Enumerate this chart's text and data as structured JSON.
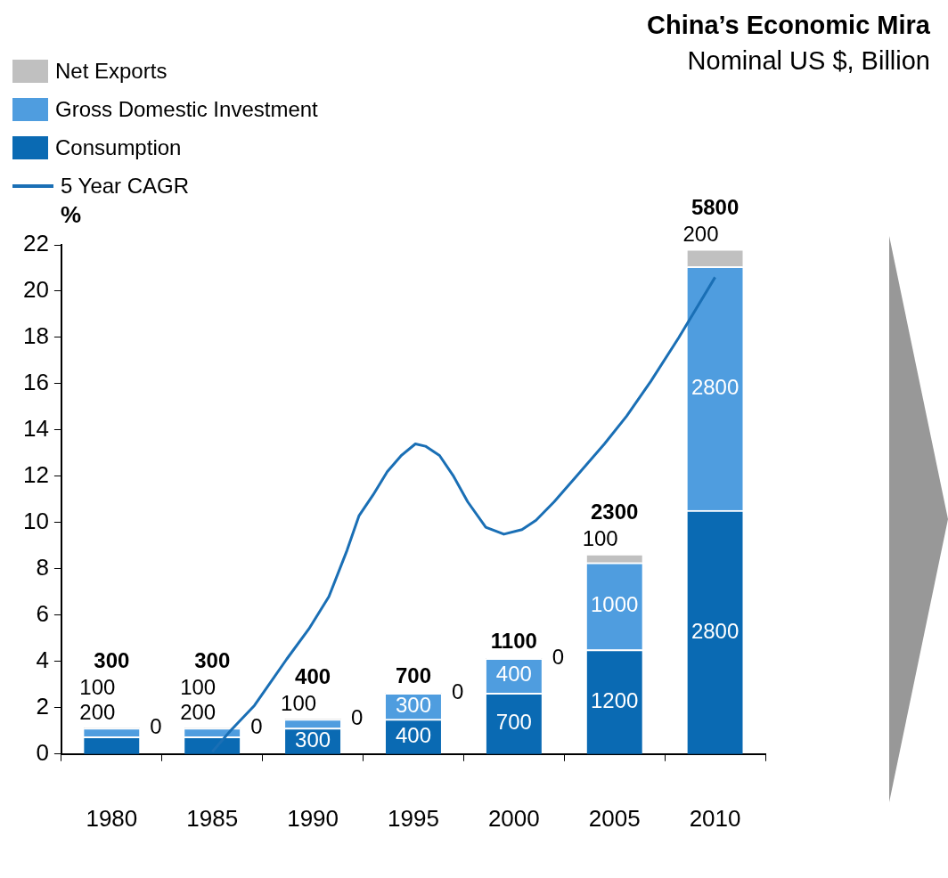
{
  "chart_data": {
    "type": "bar",
    "title": "China’s Economic Mira",
    "subtitle": "Nominal US $, Billion",
    "ylabel": "%",
    "x": [
      1980,
      1985,
      1990,
      1995,
      2000,
      2005,
      2010
    ],
    "stacked": true,
    "series": [
      {
        "name": "Consumption",
        "color": "#0a6ab3",
        "axis": "y2",
        "values": [
          200,
          200,
          300,
          400,
          700,
          1200,
          2800
        ],
        "value_labels": [
          "200",
          "200",
          "300",
          "400",
          "700",
          "1200",
          "2800"
        ]
      },
      {
        "name": "Gross Domestic Investment",
        "color": "#4f9ddf",
        "axis": "y2",
        "values": [
          100,
          100,
          100,
          300,
          400,
          1000,
          2800
        ],
        "value_labels": [
          "100",
          "100",
          "100",
          "300",
          "400",
          "1000",
          "2800"
        ]
      },
      {
        "name": "Net Exports",
        "color": "#c0c0c0",
        "axis": "y2",
        "values": [
          0,
          0,
          0,
          0,
          0,
          100,
          200
        ],
        "value_labels": [
          "0",
          "0",
          "0",
          "0",
          "0",
          "100",
          "200"
        ]
      },
      {
        "name": "5 Year CAGR",
        "type": "line",
        "color": "#1a6fb5",
        "x": [
          1985.0,
          1985.9,
          1987.1,
          1988.7,
          1989.8,
          1990.8,
          1991.7,
          1992.3,
          1993.0,
          1993.7,
          1994.4,
          1995.1,
          1995.6,
          1996.3,
          1997.0,
          1997.7,
          1998.6,
          1999.5,
          2000.4,
          2001.1,
          2002.0,
          2003.1,
          2004.5,
          2005.6,
          2006.8,
          2008.2,
          2010.0
        ],
        "values": [
          0.1,
          1.0,
          2.1,
          4.1,
          5.4,
          6.8,
          8.8,
          10.3,
          11.2,
          12.2,
          12.9,
          13.4,
          13.3,
          12.9,
          12.0,
          10.9,
          9.8,
          9.5,
          9.7,
          10.1,
          10.9,
          12.0,
          13.4,
          14.6,
          16.1,
          18.0,
          20.6
        ]
      }
    ],
    "xlim": [
      1977.5,
      2012.5
    ],
    "xticks": [
      1980,
      1985,
      1990,
      1995,
      2000,
      2005,
      2010
    ],
    "ylim": [
      0,
      22
    ],
    "yticks": [
      0,
      2,
      4,
      6,
      8,
      10,
      12,
      14,
      16,
      18,
      20,
      22
    ],
    "y2lim": [
      0,
      5850
    ],
    "totals": [
      "300",
      "300",
      "400",
      "700",
      "1100",
      "2300",
      "5800"
    ],
    "legend": "top left",
    "grid": false,
    "marker": "none",
    "line_style": "solid"
  }
}
